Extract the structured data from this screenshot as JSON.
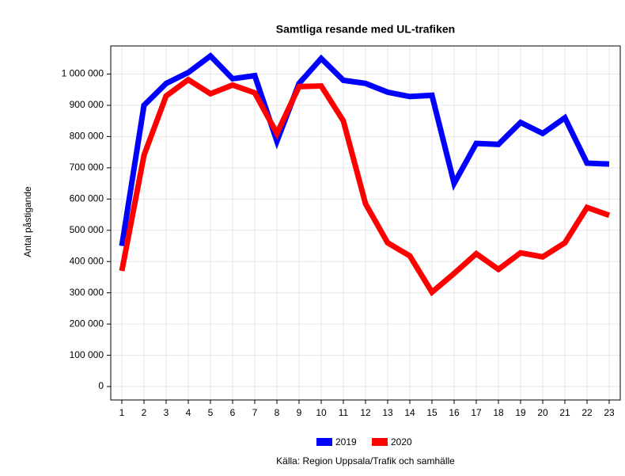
{
  "chart_data": {
    "type": "line",
    "title": "Samtliga resande med UL-trafiken",
    "y_label": "Antal påstigande",
    "source": "Källa: Region Uppsala/Trafik och samhälle",
    "categories": [
      "1",
      "2",
      "3",
      "4",
      "5",
      "6",
      "7",
      "8",
      "9",
      "10",
      "11",
      "12",
      "13",
      "14",
      "15",
      "16",
      "17",
      "18",
      "19",
      "20",
      "21",
      "22",
      "23"
    ],
    "series": [
      {
        "name": "2019",
        "color": "#0000ff",
        "values": [
          450000,
          900000,
          970000,
          1005000,
          1058000,
          985000,
          995000,
          785000,
          970000,
          1050000,
          980000,
          970000,
          942000,
          928000,
          932000,
          650000,
          778000,
          775000,
          845000,
          810000,
          860000,
          715000,
          712000
        ]
      },
      {
        "name": "2020",
        "color": "#ff0000",
        "values": [
          370000,
          740000,
          930000,
          982000,
          937000,
          965000,
          940000,
          810000,
          960000,
          962000,
          850000,
          585000,
          460000,
          418000,
          302000,
          362000,
          425000,
          375000,
          428000,
          415000,
          460000,
          573000,
          548000
        ]
      }
    ],
    "ylim": [
      -43000,
      1090000
    ],
    "yticks": [
      {
        "value": 0,
        "label": "0"
      },
      {
        "value": 100000,
        "label": "100 000"
      },
      {
        "value": 200000,
        "label": "200 000"
      },
      {
        "value": 300000,
        "label": "300 000"
      },
      {
        "value": 400000,
        "label": "400 000"
      },
      {
        "value": 500000,
        "label": "500 000"
      },
      {
        "value": 600000,
        "label": "600 000"
      },
      {
        "value": 700000,
        "label": "700 000"
      },
      {
        "value": 800000,
        "label": "800 000"
      },
      {
        "value": 900000,
        "label": "900 000"
      },
      {
        "value": 1000000,
        "label": "1 000 000"
      }
    ],
    "grid": true,
    "legend": "bottom"
  }
}
